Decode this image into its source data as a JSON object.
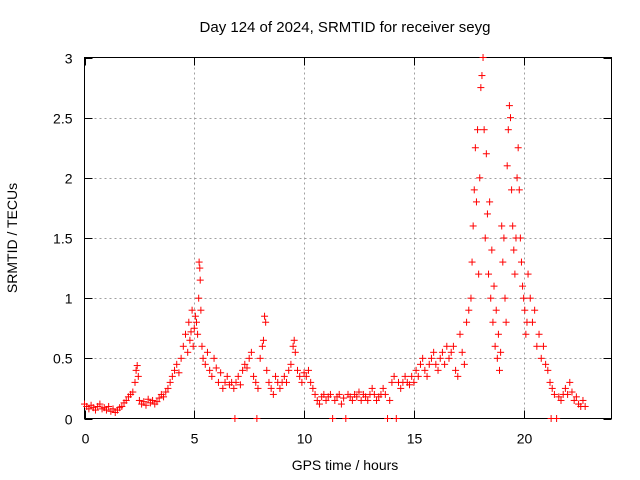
{
  "chart_data": {
    "type": "scatter",
    "title": "Day 124 of 2024, SRMTID for receiver seyg",
    "xlabel": "GPS time / hours",
    "ylabel": "SRMTID / TECUs",
    "xlim": [
      0,
      24
    ],
    "ylim": [
      0,
      3
    ],
    "xticks": [
      0,
      5,
      10,
      15,
      20
    ],
    "xtick_labels": [
      "0",
      "5",
      "10",
      "15",
      "20"
    ],
    "yticks": [
      0,
      0.5,
      1,
      1.5,
      2,
      2.5,
      3
    ],
    "ytick_labels": [
      "0",
      "0.5",
      "1",
      "1.5",
      "2",
      "2.5",
      "3"
    ],
    "grid": true,
    "marker": "+",
    "color": "#ff0000",
    "series": [
      {
        "name": "SRMTID",
        "points": [
          [
            0.0,
            0.12
          ],
          [
            0.1,
            0.1
          ],
          [
            0.2,
            0.08
          ],
          [
            0.3,
            0.11
          ],
          [
            0.4,
            0.09
          ],
          [
            0.5,
            0.07
          ],
          [
            0.6,
            0.1
          ],
          [
            0.7,
            0.12
          ],
          [
            0.8,
            0.08
          ],
          [
            0.9,
            0.09
          ],
          [
            1.0,
            0.07
          ],
          [
            1.1,
            0.1
          ],
          [
            1.2,
            0.06
          ],
          [
            1.3,
            0.08
          ],
          [
            1.4,
            0.05
          ],
          [
            1.5,
            0.07
          ],
          [
            1.6,
            0.09
          ],
          [
            1.7,
            0.1
          ],
          [
            1.8,
            0.13
          ],
          [
            1.9,
            0.15
          ],
          [
            2.0,
            0.18
          ],
          [
            2.1,
            0.2
          ],
          [
            2.2,
            0.22
          ],
          [
            2.3,
            0.3
          ],
          [
            2.35,
            0.4
          ],
          [
            2.4,
            0.44
          ],
          [
            2.45,
            0.35
          ],
          [
            2.5,
            0.15
          ],
          [
            2.6,
            0.12
          ],
          [
            2.7,
            0.14
          ],
          [
            2.8,
            0.11
          ],
          [
            2.9,
            0.16
          ],
          [
            3.0,
            0.13
          ],
          [
            3.1,
            0.15
          ],
          [
            3.2,
            0.12
          ],
          [
            3.3,
            0.14
          ],
          [
            3.4,
            0.17
          ],
          [
            3.5,
            0.2
          ],
          [
            3.6,
            0.18
          ],
          [
            3.7,
            0.22
          ],
          [
            3.8,
            0.25
          ],
          [
            3.9,
            0.3
          ],
          [
            4.0,
            0.35
          ],
          [
            4.1,
            0.4
          ],
          [
            4.2,
            0.45
          ],
          [
            4.3,
            0.38
          ],
          [
            4.4,
            0.5
          ],
          [
            4.5,
            0.6
          ],
          [
            4.6,
            0.7
          ],
          [
            4.7,
            0.55
          ],
          [
            4.75,
            0.8
          ],
          [
            4.8,
            0.65
          ],
          [
            4.85,
            0.72
          ],
          [
            4.9,
            0.9
          ],
          [
            4.95,
            0.6
          ],
          [
            5.0,
            0.75
          ],
          [
            5.05,
            0.85
          ],
          [
            5.1,
            0.8
          ],
          [
            5.15,
            0.7
          ],
          [
            5.2,
            1.0
          ],
          [
            5.22,
            1.3
          ],
          [
            5.25,
            1.25
          ],
          [
            5.27,
            1.15
          ],
          [
            5.3,
            0.9
          ],
          [
            5.35,
            0.6
          ],
          [
            5.4,
            0.5
          ],
          [
            5.5,
            0.45
          ],
          [
            5.6,
            0.55
          ],
          [
            5.7,
            0.4
          ],
          [
            5.8,
            0.35
          ],
          [
            5.9,
            0.5
          ],
          [
            6.0,
            0.42
          ],
          [
            6.1,
            0.3
          ],
          [
            6.2,
            0.38
          ],
          [
            6.3,
            0.25
          ],
          [
            6.4,
            0.3
          ],
          [
            6.5,
            0.35
          ],
          [
            6.6,
            0.28
          ],
          [
            6.7,
            0.3
          ],
          [
            6.8,
            0.25
          ],
          [
            6.85,
            0.0
          ],
          [
            6.9,
            0.3
          ],
          [
            7.0,
            0.35
          ],
          [
            7.1,
            0.28
          ],
          [
            7.2,
            0.4
          ],
          [
            7.3,
            0.45
          ],
          [
            7.4,
            0.42
          ],
          [
            7.5,
            0.5
          ],
          [
            7.6,
            0.55
          ],
          [
            7.7,
            0.35
          ],
          [
            7.8,
            0.3
          ],
          [
            7.85,
            0.0
          ],
          [
            7.9,
            0.25
          ],
          [
            8.0,
            0.5
          ],
          [
            8.1,
            0.6
          ],
          [
            8.15,
            0.65
          ],
          [
            8.2,
            0.85
          ],
          [
            8.25,
            0.8
          ],
          [
            8.3,
            0.4
          ],
          [
            8.4,
            0.3
          ],
          [
            8.5,
            0.25
          ],
          [
            8.6,
            0.2
          ],
          [
            8.7,
            0.35
          ],
          [
            8.8,
            0.3
          ],
          [
            8.9,
            0.25
          ],
          [
            9.0,
            0.3
          ],
          [
            9.1,
            0.35
          ],
          [
            9.2,
            0.3
          ],
          [
            9.3,
            0.4
          ],
          [
            9.4,
            0.45
          ],
          [
            9.5,
            0.6
          ],
          [
            9.55,
            0.65
          ],
          [
            9.6,
            0.55
          ],
          [
            9.7,
            0.4
          ],
          [
            9.8,
            0.35
          ],
          [
            9.9,
            0.3
          ],
          [
            10.0,
            0.38
          ],
          [
            10.1,
            0.35
          ],
          [
            10.2,
            0.4
          ],
          [
            10.3,
            0.3
          ],
          [
            10.4,
            0.25
          ],
          [
            10.5,
            0.2
          ],
          [
            10.6,
            0.15
          ],
          [
            10.7,
            0.12
          ],
          [
            10.8,
            0.18
          ],
          [
            10.9,
            0.2
          ],
          [
            11.0,
            0.15
          ],
          [
            11.1,
            0.18
          ],
          [
            11.2,
            0.2
          ],
          [
            11.3,
            0.0
          ],
          [
            11.4,
            0.15
          ],
          [
            11.5,
            0.18
          ],
          [
            11.6,
            0.2
          ],
          [
            11.7,
            0.12
          ],
          [
            11.8,
            0.17
          ],
          [
            11.9,
            0.0
          ],
          [
            12.0,
            0.2
          ],
          [
            12.1,
            0.18
          ],
          [
            12.2,
            0.15
          ],
          [
            12.3,
            0.2
          ],
          [
            12.4,
            0.18
          ],
          [
            12.5,
            0.22
          ],
          [
            12.6,
            0.15
          ],
          [
            12.7,
            0.2
          ],
          [
            12.8,
            0.18
          ],
          [
            12.9,
            0.15
          ],
          [
            13.0,
            0.2
          ],
          [
            13.1,
            0.25
          ],
          [
            13.2,
            0.2
          ],
          [
            13.3,
            0.15
          ],
          [
            13.4,
            0.18
          ],
          [
            13.5,
            0.2
          ],
          [
            13.6,
            0.25
          ],
          [
            13.7,
            0.2
          ],
          [
            13.8,
            0.0
          ],
          [
            13.9,
            0.15
          ],
          [
            14.0,
            0.3
          ],
          [
            14.1,
            0.35
          ],
          [
            14.2,
            0.0
          ],
          [
            14.3,
            0.3
          ],
          [
            14.4,
            0.25
          ],
          [
            14.5,
            0.3
          ],
          [
            14.6,
            0.35
          ],
          [
            14.7,
            0.3
          ],
          [
            14.8,
            0.28
          ],
          [
            14.9,
            0.35
          ],
          [
            15.0,
            0.3
          ],
          [
            15.1,
            0.4
          ],
          [
            15.2,
            0.35
          ],
          [
            15.3,
            0.45
          ],
          [
            15.4,
            0.5
          ],
          [
            15.5,
            0.4
          ],
          [
            15.6,
            0.35
          ],
          [
            15.7,
            0.45
          ],
          [
            15.8,
            0.5
          ],
          [
            15.9,
            0.55
          ],
          [
            16.0,
            0.45
          ],
          [
            16.1,
            0.4
          ],
          [
            16.2,
            0.5
          ],
          [
            16.3,
            0.55
          ],
          [
            16.4,
            0.45
          ],
          [
            16.5,
            0.6
          ],
          [
            16.6,
            0.5
          ],
          [
            16.7,
            0.55
          ],
          [
            16.8,
            0.6
          ],
          [
            16.9,
            0.4
          ],
          [
            17.0,
            0.35
          ],
          [
            17.1,
            0.7
          ],
          [
            17.2,
            0.55
          ],
          [
            17.3,
            0.45
          ],
          [
            17.4,
            0.8
          ],
          [
            17.5,
            0.9
          ],
          [
            17.6,
            1.0
          ],
          [
            17.65,
            1.3
          ],
          [
            17.7,
            1.6
          ],
          [
            17.75,
            1.9
          ],
          [
            17.8,
            2.25
          ],
          [
            17.85,
            1.8
          ],
          [
            17.9,
            2.4
          ],
          [
            17.95,
            1.2
          ],
          [
            18.0,
            2.0
          ],
          [
            18.05,
            2.75
          ],
          [
            18.1,
            2.85
          ],
          [
            18.15,
            3.0
          ],
          [
            18.2,
            2.4
          ],
          [
            18.25,
            1.5
          ],
          [
            18.3,
            2.2
          ],
          [
            18.35,
            1.7
          ],
          [
            18.4,
            1.2
          ],
          [
            18.45,
            1.8
          ],
          [
            18.5,
            1.0
          ],
          [
            18.55,
            1.4
          ],
          [
            18.6,
            0.8
          ],
          [
            18.65,
            1.1
          ],
          [
            18.7,
            0.6
          ],
          [
            18.75,
            0.9
          ],
          [
            18.8,
            0.5
          ],
          [
            18.85,
            0.7
          ],
          [
            18.9,
            0.4
          ],
          [
            18.95,
            0.55
          ],
          [
            19.0,
            1.6
          ],
          [
            19.05,
            1.3
          ],
          [
            19.1,
            1.5
          ],
          [
            19.15,
            1.0
          ],
          [
            19.2,
            0.8
          ],
          [
            19.25,
            2.1
          ],
          [
            19.3,
            2.4
          ],
          [
            19.35,
            2.6
          ],
          [
            19.4,
            2.5
          ],
          [
            19.45,
            1.9
          ],
          [
            19.5,
            1.6
          ],
          [
            19.55,
            1.4
          ],
          [
            19.6,
            1.2
          ],
          [
            19.65,
            1.5
          ],
          [
            19.7,
            2.0
          ],
          [
            19.75,
            2.25
          ],
          [
            19.8,
            1.9
          ],
          [
            19.85,
            1.5
          ],
          [
            19.9,
            1.3
          ],
          [
            19.95,
            1.1
          ],
          [
            20.0,
            1.0
          ],
          [
            20.05,
            0.9
          ],
          [
            20.1,
            0.7
          ],
          [
            20.15,
            0.8
          ],
          [
            20.2,
            1.2
          ],
          [
            20.3,
            1.0
          ],
          [
            20.4,
            0.8
          ],
          [
            20.5,
            0.9
          ],
          [
            20.6,
            0.6
          ],
          [
            20.7,
            0.7
          ],
          [
            20.8,
            0.5
          ],
          [
            20.9,
            0.6
          ],
          [
            21.0,
            0.45
          ],
          [
            21.1,
            0.4
          ],
          [
            21.2,
            0.3
          ],
          [
            21.25,
            0.0
          ],
          [
            21.3,
            0.25
          ],
          [
            21.4,
            0.2
          ],
          [
            21.5,
            0.0
          ],
          [
            21.6,
            0.18
          ],
          [
            21.7,
            0.15
          ],
          [
            21.8,
            0.2
          ],
          [
            21.9,
            0.25
          ],
          [
            22.0,
            0.2
          ],
          [
            22.1,
            0.3
          ],
          [
            22.2,
            0.22
          ],
          [
            22.3,
            0.15
          ],
          [
            22.4,
            0.18
          ],
          [
            22.5,
            0.12
          ],
          [
            22.6,
            0.1
          ],
          [
            22.7,
            0.15
          ],
          [
            22.8,
            0.1
          ]
        ]
      }
    ]
  }
}
